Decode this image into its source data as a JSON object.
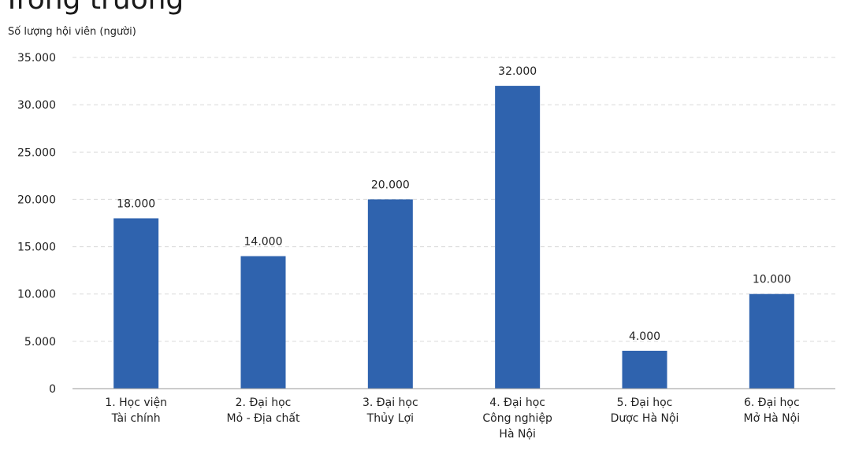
{
  "top_partial_text": "Trong trường",
  "chart_data": {
    "type": "bar",
    "title": "",
    "ylabel": "Số lượng hội viên (người)",
    "xlabel": "",
    "ylim": [
      0,
      35000
    ],
    "yticks": [
      "0",
      "5.000",
      "10.000",
      "15.000",
      "20.000",
      "25.000",
      "30.000",
      "35.000"
    ],
    "ytick_values": [
      0,
      5000,
      10000,
      15000,
      20000,
      25000,
      30000,
      35000
    ],
    "categories": [
      [
        "1. Học viện",
        "Tài chính"
      ],
      [
        "2. Đại học",
        "Mỏ - Địa chất"
      ],
      [
        "3. Đại học",
        "Thủy Lợi"
      ],
      [
        "4. Đại học",
        "Công nghiệp",
        "Hà Nội"
      ],
      [
        "5. Đại học",
        "Dược Hà Nội"
      ],
      [
        "6. Đại học",
        "Mở Hà Nội"
      ]
    ],
    "values": [
      18000,
      14000,
      20000,
      32000,
      4000,
      10000
    ],
    "value_labels": [
      "18.000",
      "14.000",
      "20.000",
      "32.000",
      "4.000",
      "10.000"
    ],
    "bar_color": "#2f63ae",
    "grid": true
  }
}
